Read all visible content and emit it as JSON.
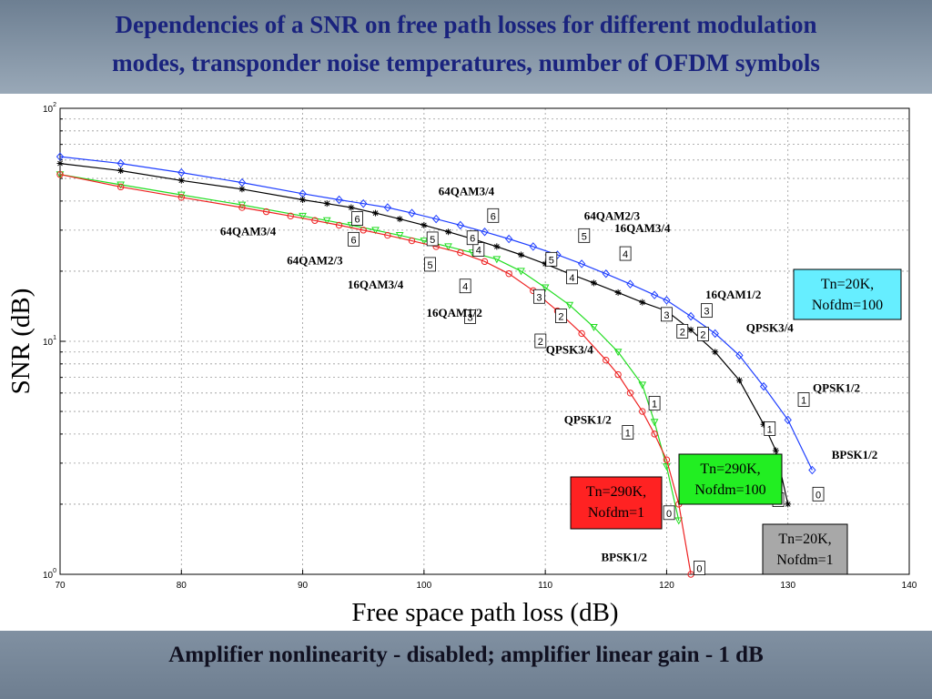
{
  "slide": {
    "title_line1": "Dependencies of a SNR on free path losses for different modulation",
    "title_line2": "modes, transponder noise temperatures, number of OFDM symbols",
    "footer": "Amplifier nonlinearity - disabled; amplifier linear gain - 1 dB"
  },
  "colors": {
    "title": "#1a237e",
    "blue": "#1f3fff",
    "black": "#000000",
    "green": "#22dd22",
    "red": "#ee2222"
  },
  "chart_data": {
    "type": "line",
    "xlabel": "Free space path loss (dB)",
    "ylabel": "SNR (dB)",
    "xlim": [
      70,
      140
    ],
    "ylim": [
      1,
      100
    ],
    "yscale": "log",
    "grid": true,
    "xticks": [
      70,
      80,
      90,
      100,
      110,
      120,
      130,
      140
    ],
    "ytick_labels": [
      {
        "v": 1,
        "base": "10",
        "exp": "0"
      },
      {
        "v": 10,
        "base": "10",
        "exp": "1"
      },
      {
        "v": 100,
        "base": "10",
        "exp": "2"
      }
    ],
    "series": [
      {
        "color": "blue",
        "marker": "diamond",
        "x": [
          70,
          75,
          80,
          85,
          90,
          93,
          95,
          97,
          99,
          101,
          103,
          105,
          107,
          109,
          111,
          113,
          115,
          117,
          119,
          120,
          122,
          124,
          126,
          128,
          130,
          132
        ],
        "y": [
          62,
          58,
          53,
          48,
          43,
          40.5,
          39,
          37.5,
          35.5,
          33.5,
          31.5,
          29.5,
          27.5,
          25.5,
          23.5,
          21.5,
          19.5,
          17.6,
          15.8,
          15,
          12.8,
          10.8,
          8.7,
          6.4,
          4.6,
          2.8
        ]
      },
      {
        "color": "black",
        "marker": "star",
        "x": [
          70,
          75,
          80,
          85,
          90,
          92,
          94,
          96,
          98,
          100,
          102,
          104,
          106,
          108,
          110,
          112,
          114,
          116,
          118,
          120,
          122,
          124,
          126,
          128,
          129,
          130
        ],
        "y": [
          58,
          54,
          49,
          45,
          40.5,
          39,
          37.5,
          35.5,
          33.5,
          31.5,
          29.5,
          27.5,
          25.5,
          23.5,
          21.5,
          19.5,
          17.8,
          16.2,
          14.7,
          13.5,
          11.2,
          9.0,
          6.8,
          4.4,
          3.4,
          2.0
        ]
      },
      {
        "color": "green",
        "marker": "triangle",
        "x": [
          70,
          75,
          80,
          85,
          90,
          92,
          94,
          96,
          98,
          100,
          102,
          104,
          106,
          108,
          110,
          112,
          114,
          116,
          118,
          119,
          120,
          121
        ],
        "y": [
          52,
          47,
          42.5,
          38.5,
          34.5,
          33,
          31.5,
          30,
          28.5,
          27,
          25.5,
          24,
          22.5,
          20,
          17,
          14.3,
          11.5,
          9.0,
          6.5,
          4.5,
          2.9,
          1.7
        ]
      },
      {
        "color": "red",
        "marker": "circle",
        "x": [
          70,
          75,
          80,
          85,
          87,
          89,
          91,
          93,
          95,
          97,
          99,
          101,
          103,
          105,
          107,
          109,
          111,
          113,
          115,
          116,
          117,
          118,
          119,
          120,
          121,
          122
        ],
        "y": [
          52,
          46,
          41.5,
          37.5,
          36,
          34.5,
          33,
          31.5,
          30,
          28.5,
          27,
          25.5,
          24,
          22,
          19.5,
          16.5,
          13.5,
          10.8,
          8.3,
          7.2,
          6.0,
          5.0,
          4.0,
          3.1,
          2.0,
          1.0
        ]
      }
    ],
    "mode_labels": [
      {
        "text": "64QAM3/4",
        "x": 103.5,
        "y": 44,
        "anchor": "middle"
      },
      {
        "text": "64QAM2/3",
        "x": 115.5,
        "y": 34.5,
        "anchor": "middle"
      },
      {
        "text": "16QAM3/4",
        "x": 118,
        "y": 30.5,
        "anchor": "middle"
      },
      {
        "text": "16QAM1/2",
        "x": 125.5,
        "y": 15.8,
        "anchor": "middle"
      },
      {
        "text": "QPSK3/4",
        "x": 128.5,
        "y": 11.4,
        "anchor": "middle"
      },
      {
        "text": "QPSK1/2",
        "x": 134,
        "y": 6.3,
        "anchor": "middle"
      },
      {
        "text": "BPSK1/2",
        "x": 135.5,
        "y": 3.25,
        "anchor": "middle"
      },
      {
        "text": "64QAM3/4",
        "x": 85.5,
        "y": 29.5,
        "anchor": "middle"
      },
      {
        "text": "64QAM2/3",
        "x": 91,
        "y": 22.2,
        "anchor": "middle"
      },
      {
        "text": "16QAM3/4",
        "x": 96,
        "y": 17.5,
        "anchor": "middle"
      },
      {
        "text": "16QAM1/2",
        "x": 102.5,
        "y": 13.2,
        "anchor": "middle"
      },
      {
        "text": "QPSK3/4",
        "x": 112,
        "y": 9.2,
        "anchor": "middle"
      },
      {
        "text": "QPSK1/2",
        "x": 113.5,
        "y": 4.6,
        "anchor": "middle"
      },
      {
        "text": "BPSK1/2",
        "x": 116.5,
        "y": 1.18,
        "anchor": "middle"
      }
    ],
    "mode_boxes": [
      {
        "text": "6",
        "x": 105.7,
        "y": 34.5
      },
      {
        "text": "5",
        "x": 113.2,
        "y": 28.3
      },
      {
        "text": "4",
        "x": 116.6,
        "y": 23.7
      },
      {
        "text": "3",
        "x": 123.3,
        "y": 13.5
      },
      {
        "text": "2",
        "x": 123,
        "y": 10.7
      },
      {
        "text": "1",
        "x": 131.3,
        "y": 5.6
      },
      {
        "text": "0",
        "x": 132.5,
        "y": 2.2
      },
      {
        "text": "6",
        "x": 94.5,
        "y": 33.5
      },
      {
        "text": "5",
        "x": 100.7,
        "y": 27.4
      },
      {
        "text": "4",
        "x": 104.5,
        "y": 24.7
      },
      {
        "text": "3",
        "x": 109.5,
        "y": 15.5
      },
      {
        "text": "2",
        "x": 111.3,
        "y": 12.8
      },
      {
        "text": "1",
        "x": 119,
        "y": 5.4
      },
      {
        "text": "0",
        "x": 120.2,
        "y": 1.83
      },
      {
        "text": "6",
        "x": 94.2,
        "y": 27.3
      },
      {
        "text": "5",
        "x": 100.5,
        "y": 21.3
      },
      {
        "text": "4",
        "x": 103.4,
        "y": 17.2
      },
      {
        "text": "3",
        "x": 120,
        "y": 13
      },
      {
        "text": "2",
        "x": 121.3,
        "y": 11
      },
      {
        "text": "1",
        "x": 128.5,
        "y": 4.2
      },
      {
        "text": "0",
        "x": 129.2,
        "y": 2.08
      },
      {
        "text": "6",
        "x": 104,
        "y": 27.7
      },
      {
        "text": "5",
        "x": 110.5,
        "y": 22.4
      },
      {
        "text": "4",
        "x": 112.2,
        "y": 18.8
      },
      {
        "text": "3",
        "x": 103.8,
        "y": 12.7
      },
      {
        "text": "2",
        "x": 109.6,
        "y": 10.0
      },
      {
        "text": "1",
        "x": 116.8,
        "y": 4.05
      },
      {
        "text": "0",
        "x": 122.7,
        "y": 1.06
      }
    ],
    "annotations": [
      {
        "line1": "Tn=20K,",
        "line2": "Nofdm=100",
        "bg": "#66eeff"
      },
      {
        "line1": "Tn=290K,",
        "line2": "Nofdm=100",
        "bg": "#22ee22"
      },
      {
        "line1": "Tn=290K,",
        "line2": "Nofdm=1",
        "bg": "#ff2222"
      },
      {
        "line1": "Tn=20K,",
        "line2": "Nofdm=1",
        "bg": "#a8a8a8"
      }
    ]
  }
}
